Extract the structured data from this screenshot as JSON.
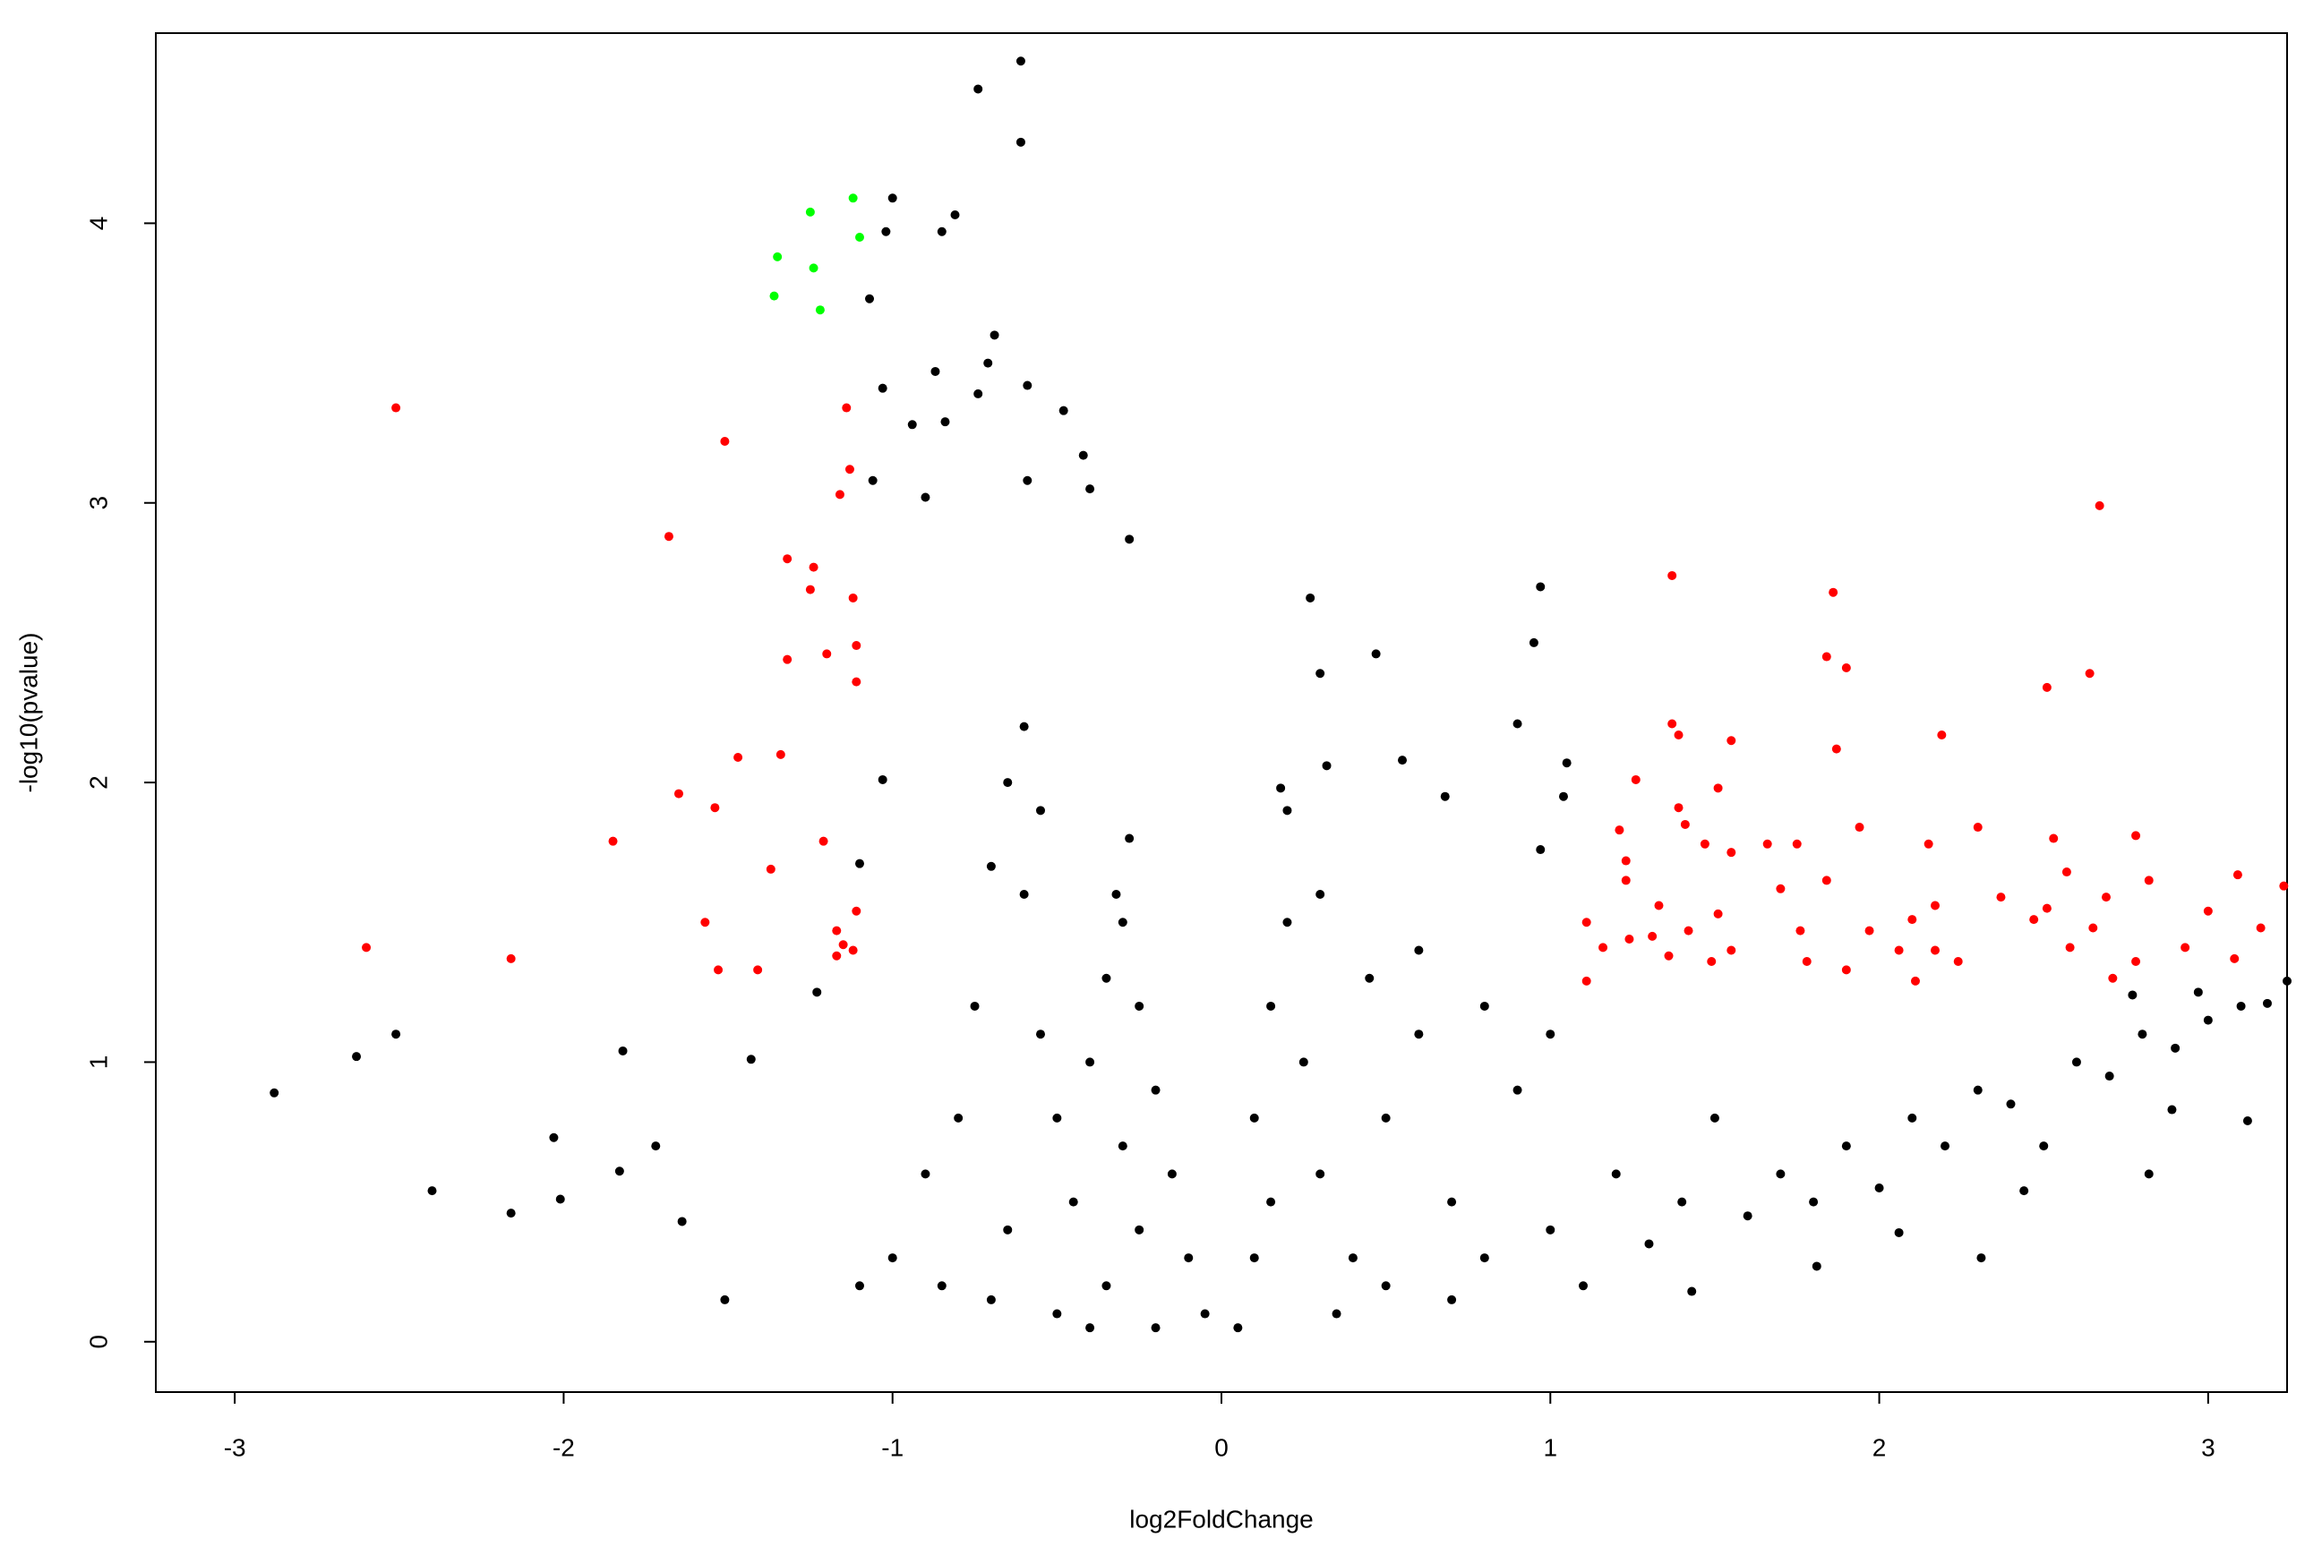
{
  "chart_data": {
    "type": "scatter",
    "x_label": "log2FoldChange",
    "y_label": "-log10(pvalue)",
    "xlim": [
      -3.24,
      3.24
    ],
    "ylim": [
      -0.18,
      4.68
    ],
    "xticks": [
      -3,
      -2,
      -1,
      0,
      1,
      2,
      3
    ],
    "yticks": [
      0,
      1,
      2,
      3,
      4
    ],
    "series": [
      {
        "color": "#000000",
        "x": [
          -0.61,
          -0.74,
          -0.61,
          -1.0,
          -0.81,
          -1.02,
          -0.85,
          -1.07,
          -0.69,
          -0.71,
          -0.87,
          -0.59,
          -0.48,
          -0.42,
          -1.03,
          -0.94,
          -0.84,
          -0.74,
          -0.28,
          -1.06,
          -0.9,
          -0.59,
          -0.4,
          0.27,
          0.97,
          0.95,
          0.47,
          0.3,
          0.9,
          0.55,
          1.05,
          1.04,
          0.97,
          0.68,
          0.18,
          0.32,
          -1.1,
          -1.03,
          -2.88,
          -2.63,
          -2.51,
          -2.4,
          -2.16,
          -2.03,
          -1.82,
          -2.01,
          -1.83,
          -1.72,
          -1.64,
          -1.51,
          -1.43,
          -1.23,
          1.43,
          2.31,
          3.12,
          3.24,
          2.82,
          2.44,
          2.06,
          1.81,
          2.89,
          2.77,
          2.97,
          3.18,
          -0.05,
          -0.1,
          -0.15,
          -0.2,
          -0.25,
          -0.3,
          -0.35,
          -0.4,
          -0.3,
          -0.25,
          -0.35,
          -0.5,
          -0.6,
          -0.55,
          -0.6,
          -0.65,
          -0.7,
          -0.75,
          -0.8,
          -0.9,
          -1.0,
          -1.1,
          -0.45,
          -0.5,
          -0.55,
          -0.65,
          -0.7,
          -0.85,
          -0.4,
          -0.2,
          -0.28,
          -0.32,
          0.05,
          0.1,
          0.1,
          0.15,
          0.2,
          0.25,
          0.3,
          0.4,
          0.5,
          0.5,
          0.6,
          0.7,
          0.8,
          0.9,
          1.0,
          1.1,
          1.2,
          1.3,
          1.4,
          1.5,
          1.6,
          1.7,
          1.8,
          1.9,
          2.0,
          2.1,
          2.2,
          2.3,
          2.4,
          2.5,
          2.6,
          2.7,
          2.8,
          2.9,
          3.0,
          3.1,
          0.3,
          0.2,
          0.6,
          0.8,
          1.0,
          0.35,
          0.7,
          0.15,
          0.45
        ],
        "values": [
          4.58,
          4.48,
          4.29,
          4.09,
          4.03,
          3.97,
          3.97,
          3.73,
          3.6,
          3.5,
          3.47,
          3.42,
          3.33,
          3.17,
          3.41,
          3.28,
          3.29,
          3.39,
          2.87,
          3.08,
          3.02,
          3.08,
          3.05,
          2.66,
          2.7,
          2.5,
          2.46,
          2.39,
          2.21,
          2.08,
          2.07,
          1.95,
          1.76,
          1.95,
          1.98,
          2.06,
          1.71,
          2.01,
          0.89,
          1.02,
          1.1,
          0.54,
          0.46,
          0.73,
          1.04,
          0.51,
          0.61,
          0.7,
          0.43,
          0.15,
          1.01,
          1.25,
          0.18,
          0.3,
          0.79,
          1.29,
          0.6,
          0.54,
          0.39,
          0.27,
          0.83,
          1.24,
          1.25,
          1.21,
          0.1,
          0.3,
          0.6,
          0.9,
          1.2,
          1.5,
          1.3,
          1.0,
          0.7,
          0.4,
          0.2,
          0.1,
          1.6,
          1.9,
          2.2,
          2.0,
          1.7,
          1.2,
          0.8,
          0.6,
          0.3,
          0.2,
          0.5,
          0.8,
          1.1,
          0.4,
          0.15,
          0.2,
          0.05,
          0.05,
          1.8,
          1.6,
          0.05,
          0.3,
          0.8,
          1.2,
          1.5,
          1.0,
          0.6,
          0.3,
          0.8,
          0.2,
          1.1,
          0.5,
          0.3,
          0.9,
          0.4,
          0.2,
          0.6,
          0.35,
          0.5,
          0.8,
          0.45,
          0.6,
          0.5,
          0.7,
          0.55,
          0.8,
          0.7,
          0.9,
          0.85,
          0.7,
          1.0,
          0.95,
          1.1,
          1.05,
          1.15,
          1.2,
          1.6,
          1.9,
          1.4,
          1.2,
          1.1,
          0.1,
          0.15,
          0.5,
          1.3
        ]
      },
      {
        "color": "#ff0000",
        "x": [
          -2.51,
          -2.6,
          -2.16,
          -1.85,
          -1.68,
          -1.65,
          -1.51,
          -1.47,
          -1.54,
          -1.57,
          -1.53,
          -1.32,
          -1.24,
          -1.25,
          -1.32,
          -1.34,
          -1.37,
          -1.41,
          -1.14,
          -1.13,
          -1.16,
          -1.12,
          -1.2,
          -1.11,
          -1.11,
          -1.21,
          -1.11,
          -1.17,
          -1.15,
          -1.12,
          -1.17,
          2.67,
          1.37,
          1.86,
          1.84,
          1.9,
          2.51,
          2.64,
          1.37,
          1.39,
          1.55,
          1.87,
          2.19,
          1.26,
          1.51,
          1.39,
          1.41,
          1.21,
          1.94,
          2.3,
          2.53,
          2.78,
          1.66,
          1.75,
          2.15,
          1.47,
          1.55,
          1.23,
          1.23,
          1.84,
          2.57,
          2.82,
          3.09,
          3.23,
          1.33,
          1.7,
          2.37,
          2.69,
          1.11,
          1.51,
          2.1,
          2.17,
          2.47,
          2.51,
          2.65,
          3.0,
          3.16,
          1.16,
          1.24,
          1.31,
          1.42,
          1.55,
          1.76,
          1.97,
          2.06,
          2.17,
          2.24,
          2.58,
          2.78,
          2.93,
          3.08,
          1.36,
          1.49,
          1.78,
          1.9,
          1.11,
          2.11,
          2.71
        ],
        "values": [
          3.34,
          1.41,
          1.37,
          1.79,
          2.88,
          1.96,
          3.22,
          2.09,
          1.91,
          1.5,
          1.33,
          2.8,
          2.77,
          2.69,
          2.44,
          2.1,
          1.69,
          1.33,
          3.34,
          3.12,
          3.03,
          2.66,
          2.46,
          2.49,
          2.36,
          1.79,
          1.54,
          1.47,
          1.42,
          1.4,
          1.38,
          2.99,
          2.74,
          2.68,
          2.45,
          2.41,
          2.34,
          2.39,
          2.21,
          2.17,
          2.15,
          2.12,
          2.17,
          2.01,
          1.98,
          1.91,
          1.85,
          1.83,
          1.84,
          1.84,
          1.8,
          1.81,
          1.78,
          1.78,
          1.78,
          1.78,
          1.75,
          1.72,
          1.65,
          1.65,
          1.68,
          1.65,
          1.67,
          1.63,
          1.56,
          1.62,
          1.59,
          1.59,
          1.5,
          1.53,
          1.51,
          1.56,
          1.51,
          1.55,
          1.48,
          1.54,
          1.48,
          1.41,
          1.44,
          1.45,
          1.47,
          1.4,
          1.47,
          1.47,
          1.4,
          1.4,
          1.36,
          1.41,
          1.36,
          1.41,
          1.37,
          1.38,
          1.36,
          1.36,
          1.33,
          1.29,
          1.29,
          1.3
        ]
      },
      {
        "color": "#00ff00",
        "x": [
          -1.35,
          -1.25,
          -1.12,
          -1.24,
          -1.1,
          -1.36,
          -1.22
        ],
        "values": [
          3.88,
          4.04,
          4.09,
          3.84,
          3.95,
          3.74,
          3.69
        ]
      }
    ]
  }
}
